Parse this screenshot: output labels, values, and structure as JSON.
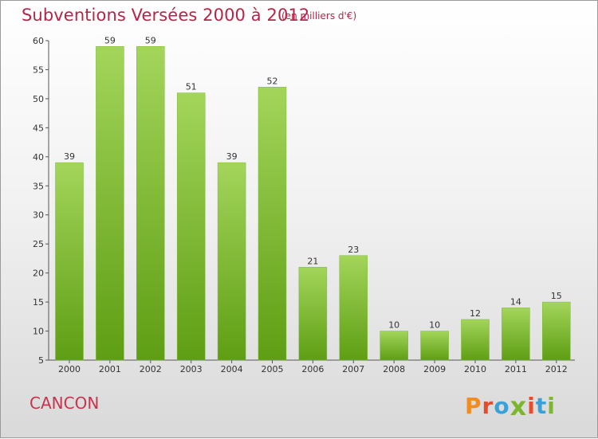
{
  "title": "Subventions Versées 2000 à 2012",
  "subtitle": "(en milliers d'€)",
  "town": "CANCON",
  "logo": {
    "letters": [
      "P",
      "r",
      "o",
      "x",
      "i",
      "t",
      "i"
    ],
    "colors": [
      "#f28c1e",
      "#e84a2a",
      "#3aa0d8",
      "#7cb52e",
      "#e84a2a",
      "#3aa0d8",
      "#7cb52e"
    ]
  },
  "colors": {
    "bar_top": "#a3d55a",
    "bar_bottom": "#5e9e14",
    "title": "#b4254a"
  },
  "chart_data": {
    "type": "bar",
    "categories": [
      "2000",
      "2001",
      "2002",
      "2003",
      "2004",
      "2005",
      "2006",
      "2007",
      "2008",
      "2009",
      "2010",
      "2011",
      "2012"
    ],
    "values": [
      39,
      59,
      59,
      51,
      39,
      52,
      21,
      23,
      10,
      10,
      12,
      14,
      15
    ],
    "ylim": [
      5,
      60
    ],
    "yticks": [
      5,
      10,
      15,
      20,
      25,
      30,
      35,
      40,
      45,
      50,
      55,
      60
    ],
    "grid": false
  }
}
